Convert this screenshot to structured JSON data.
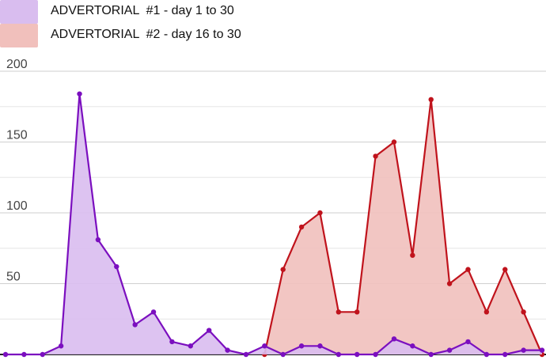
{
  "chart_data": {
    "type": "area",
    "title": "",
    "xlabel": "",
    "ylabel": "",
    "ylim": [
      0,
      200
    ],
    "yticks": [
      50,
      100,
      150,
      200
    ],
    "grid": true,
    "legend_position": "top-left",
    "x": [
      1,
      2,
      3,
      4,
      5,
      6,
      7,
      8,
      9,
      10,
      11,
      12,
      13,
      14,
      15,
      16,
      17,
      18,
      19,
      20,
      21,
      22,
      23,
      24,
      25,
      26,
      27,
      28,
      29,
      30
    ],
    "series": [
      {
        "name": "ADVERTORIAL  #1 - day 1 to 30",
        "line_color": "#7b0fbf",
        "fill_color": "#d9bdef",
        "values": [
          0,
          0,
          0,
          6,
          184,
          81,
          62,
          21,
          30,
          9,
          6,
          17,
          3,
          0,
          6,
          0,
          6,
          6,
          0,
          0,
          0,
          11,
          6,
          0,
          3,
          9,
          0,
          0,
          3,
          3
        ]
      },
      {
        "name": "ADVERTORIAL  #2 - day 16 to 30",
        "line_color": "#c0131c",
        "fill_color": "#f1c0bc",
        "values": [
          null,
          null,
          null,
          null,
          null,
          null,
          null,
          null,
          null,
          null,
          null,
          null,
          null,
          null,
          0,
          60,
          90,
          100,
          30,
          30,
          140,
          150,
          70,
          180,
          50,
          60,
          30,
          60,
          30,
          0
        ]
      }
    ]
  }
}
